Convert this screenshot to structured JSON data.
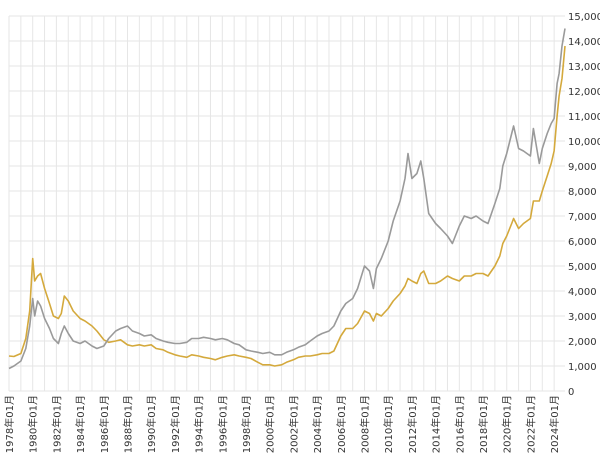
{
  "chart_data": {
    "type": "line",
    "title": "",
    "xlabel": "",
    "ylabel": "",
    "x_range": [
      "1978-01",
      "2024-12"
    ],
    "ylim": [
      0,
      15000
    ],
    "y_ticks": [
      0,
      1000,
      2000,
      3000,
      4000,
      5000,
      6000,
      7000,
      8000,
      9000,
      10000,
      11000,
      12000,
      13000,
      14000,
      15000
    ],
    "y_tick_labels": [
      "0",
      "1,000",
      "2,000",
      "3,000",
      "4,000",
      "5,000",
      "6,000",
      "7,000",
      "8,000",
      "9,000",
      "10,000",
      "11,000",
      "12,000",
      "13,000",
      "14,000",
      "15,000"
    ],
    "y_axis_side": "right",
    "x_tick_labels": [
      "1978年01月",
      "1980年01月",
      "1982年01月",
      "1984年01月",
      "1986年01月",
      "1988年01月",
      "1990年01月",
      "1992年01月",
      "1994年01月",
      "1996年01月",
      "1998年01月",
      "2000年01月",
      "2002年01月",
      "2004年01月",
      "2006年01月",
      "2008年01月",
      "2010年01月",
      "2012年01月",
      "2014年01月",
      "2016年01月",
      "2018年01月",
      "2020年01月",
      "2022年01月",
      "2024年01月"
    ],
    "grid": true,
    "series": [
      {
        "color": "#d4a93c",
        "points": [
          [
            "1978-01",
            1400
          ],
          [
            "1978-06",
            1380
          ],
          [
            "1979-01",
            1500
          ],
          [
            "1979-06",
            2100
          ],
          [
            "1979-10",
            3200
          ],
          [
            "1980-01",
            5300
          ],
          [
            "1980-03",
            4400
          ],
          [
            "1980-06",
            4600
          ],
          [
            "1980-09",
            4700
          ],
          [
            "1981-01",
            4100
          ],
          [
            "1981-06",
            3500
          ],
          [
            "1981-10",
            3000
          ],
          [
            "1982-03",
            2900
          ],
          [
            "1982-06",
            3100
          ],
          [
            "1982-09",
            3800
          ],
          [
            "1983-01",
            3600
          ],
          [
            "1983-06",
            3200
          ],
          [
            "1984-01",
            2900
          ],
          [
            "1984-06",
            2800
          ],
          [
            "1985-01",
            2600
          ],
          [
            "1985-06",
            2400
          ],
          [
            "1986-01",
            2050
          ],
          [
            "1986-06",
            1950
          ],
          [
            "1987-01",
            2000
          ],
          [
            "1987-06",
            2050
          ],
          [
            "1988-01",
            1850
          ],
          [
            "1988-06",
            1800
          ],
          [
            "1989-01",
            1850
          ],
          [
            "1989-06",
            1800
          ],
          [
            "1990-01",
            1850
          ],
          [
            "1990-06",
            1700
          ],
          [
            "1991-01",
            1650
          ],
          [
            "1991-06",
            1550
          ],
          [
            "1992-01",
            1450
          ],
          [
            "1992-06",
            1400
          ],
          [
            "1993-01",
            1350
          ],
          [
            "1993-06",
            1450
          ],
          [
            "1994-01",
            1400
          ],
          [
            "1994-06",
            1350
          ],
          [
            "1995-01",
            1300
          ],
          [
            "1995-06",
            1250
          ],
          [
            "1996-01",
            1350
          ],
          [
            "1996-06",
            1400
          ],
          [
            "1997-01",
            1450
          ],
          [
            "1997-06",
            1400
          ],
          [
            "1998-01",
            1350
          ],
          [
            "1998-06",
            1300
          ],
          [
            "1999-01",
            1150
          ],
          [
            "1999-06",
            1050
          ],
          [
            "2000-01",
            1050
          ],
          [
            "2000-06",
            1000
          ],
          [
            "2001-01",
            1050
          ],
          [
            "2001-06",
            1150
          ],
          [
            "2002-01",
            1250
          ],
          [
            "2002-06",
            1350
          ],
          [
            "2003-01",
            1400
          ],
          [
            "2003-06",
            1400
          ],
          [
            "2004-01",
            1450
          ],
          [
            "2004-06",
            1500
          ],
          [
            "2005-01",
            1500
          ],
          [
            "2005-06",
            1600
          ],
          [
            "2006-01",
            2200
          ],
          [
            "2006-06",
            2500
          ],
          [
            "2007-01",
            2500
          ],
          [
            "2007-06",
            2700
          ],
          [
            "2008-01",
            3200
          ],
          [
            "2008-06",
            3100
          ],
          [
            "2008-10",
            2800
          ],
          [
            "2009-01",
            3100
          ],
          [
            "2009-06",
            3000
          ],
          [
            "2010-01",
            3300
          ],
          [
            "2010-06",
            3600
          ],
          [
            "2011-01",
            3900
          ],
          [
            "2011-06",
            4200
          ],
          [
            "2011-09",
            4500
          ],
          [
            "2012-01",
            4400
          ],
          [
            "2012-06",
            4300
          ],
          [
            "2012-10",
            4700
          ],
          [
            "2013-01",
            4800
          ],
          [
            "2013-06",
            4300
          ],
          [
            "2014-01",
            4300
          ],
          [
            "2014-06",
            4400
          ],
          [
            "2015-01",
            4600
          ],
          [
            "2015-06",
            4500
          ],
          [
            "2016-01",
            4400
          ],
          [
            "2016-06",
            4600
          ],
          [
            "2017-01",
            4600
          ],
          [
            "2017-06",
            4700
          ],
          [
            "2018-01",
            4700
          ],
          [
            "2018-06",
            4600
          ],
          [
            "2019-01",
            5000
          ],
          [
            "2019-06",
            5400
          ],
          [
            "2019-09",
            5900
          ],
          [
            "2020-01",
            6200
          ],
          [
            "2020-06",
            6700
          ],
          [
            "2020-08",
            6900
          ],
          [
            "2021-01",
            6500
          ],
          [
            "2021-06",
            6700
          ],
          [
            "2022-01",
            6900
          ],
          [
            "2022-04",
            7600
          ],
          [
            "2022-10",
            7600
          ],
          [
            "2023-01",
            8000
          ],
          [
            "2023-06",
            8600
          ],
          [
            "2023-10",
            9100
          ],
          [
            "2024-01",
            9600
          ],
          [
            "2024-04",
            11000
          ],
          [
            "2024-06",
            11800
          ],
          [
            "2024-09",
            12500
          ],
          [
            "2024-12",
            13800
          ]
        ]
      },
      {
        "color": "#9a9a9a",
        "points": [
          [
            "1978-01",
            900
          ],
          [
            "1978-06",
            1000
          ],
          [
            "1979-01",
            1200
          ],
          [
            "1979-06",
            1700
          ],
          [
            "1979-10",
            2600
          ],
          [
            "1980-01",
            3700
          ],
          [
            "1980-03",
            3000
          ],
          [
            "1980-06",
            3600
          ],
          [
            "1980-09",
            3400
          ],
          [
            "1981-01",
            2900
          ],
          [
            "1981-06",
            2500
          ],
          [
            "1981-10",
            2100
          ],
          [
            "1982-03",
            1900
          ],
          [
            "1982-06",
            2300
          ],
          [
            "1982-09",
            2600
          ],
          [
            "1983-01",
            2300
          ],
          [
            "1983-06",
            2000
          ],
          [
            "1984-01",
            1900
          ],
          [
            "1984-06",
            2000
          ],
          [
            "1985-01",
            1800
          ],
          [
            "1985-06",
            1700
          ],
          [
            "1986-01",
            1800
          ],
          [
            "1986-06",
            2100
          ],
          [
            "1987-01",
            2400
          ],
          [
            "1987-06",
            2500
          ],
          [
            "1988-01",
            2600
          ],
          [
            "1988-06",
            2400
          ],
          [
            "1989-01",
            2300
          ],
          [
            "1989-06",
            2200
          ],
          [
            "1990-01",
            2250
          ],
          [
            "1990-06",
            2100
          ],
          [
            "1991-01",
            2000
          ],
          [
            "1991-06",
            1950
          ],
          [
            "1992-01",
            1900
          ],
          [
            "1992-06",
            1900
          ],
          [
            "1993-01",
            1950
          ],
          [
            "1993-06",
            2100
          ],
          [
            "1994-01",
            2100
          ],
          [
            "1994-06",
            2150
          ],
          [
            "1995-01",
            2100
          ],
          [
            "1995-06",
            2050
          ],
          [
            "1996-01",
            2100
          ],
          [
            "1996-06",
            2050
          ],
          [
            "1997-01",
            1900
          ],
          [
            "1997-06",
            1850
          ],
          [
            "1998-01",
            1650
          ],
          [
            "1998-06",
            1600
          ],
          [
            "1999-01",
            1550
          ],
          [
            "1999-06",
            1500
          ],
          [
            "2000-01",
            1550
          ],
          [
            "2000-06",
            1450
          ],
          [
            "2001-01",
            1450
          ],
          [
            "2001-06",
            1550
          ],
          [
            "2002-01",
            1650
          ],
          [
            "2002-06",
            1750
          ],
          [
            "2003-01",
            1850
          ],
          [
            "2003-06",
            2000
          ],
          [
            "2004-01",
            2200
          ],
          [
            "2004-06",
            2300
          ],
          [
            "2005-01",
            2400
          ],
          [
            "2005-06",
            2600
          ],
          [
            "2006-01",
            3200
          ],
          [
            "2006-06",
            3500
          ],
          [
            "2007-01",
            3700
          ],
          [
            "2007-06",
            4100
          ],
          [
            "2008-01",
            5000
          ],
          [
            "2008-06",
            4800
          ],
          [
            "2008-10",
            4100
          ],
          [
            "2009-01",
            4900
          ],
          [
            "2009-06",
            5300
          ],
          [
            "2010-01",
            6000
          ],
          [
            "2010-06",
            6800
          ],
          [
            "2011-01",
            7600
          ],
          [
            "2011-06",
            8500
          ],
          [
            "2011-09",
            9500
          ],
          [
            "2012-01",
            8500
          ],
          [
            "2012-06",
            8700
          ],
          [
            "2012-10",
            9200
          ],
          [
            "2013-01",
            8500
          ],
          [
            "2013-06",
            7100
          ],
          [
            "2014-01",
            6700
          ],
          [
            "2014-06",
            6500
          ],
          [
            "2015-01",
            6200
          ],
          [
            "2015-06",
            5900
          ],
          [
            "2016-01",
            6600
          ],
          [
            "2016-06",
            7000
          ],
          [
            "2017-01",
            6900
          ],
          [
            "2017-06",
            7000
          ],
          [
            "2018-01",
            6800
          ],
          [
            "2018-06",
            6700
          ],
          [
            "2019-01",
            7500
          ],
          [
            "2019-06",
            8100
          ],
          [
            "2019-09",
            9000
          ],
          [
            "2020-01",
            9500
          ],
          [
            "2020-06",
            10300
          ],
          [
            "2020-08",
            10600
          ],
          [
            "2021-01",
            9700
          ],
          [
            "2021-06",
            9600
          ],
          [
            "2022-01",
            9400
          ],
          [
            "2022-04",
            10500
          ],
          [
            "2022-10",
            9100
          ],
          [
            "2023-01",
            9700
          ],
          [
            "2023-06",
            10300
          ],
          [
            "2023-10",
            10700
          ],
          [
            "2024-01",
            10900
          ],
          [
            "2024-04",
            12300
          ],
          [
            "2024-06",
            12700
          ],
          [
            "2024-09",
            13800
          ],
          [
            "2024-12",
            14500
          ]
        ]
      }
    ]
  }
}
